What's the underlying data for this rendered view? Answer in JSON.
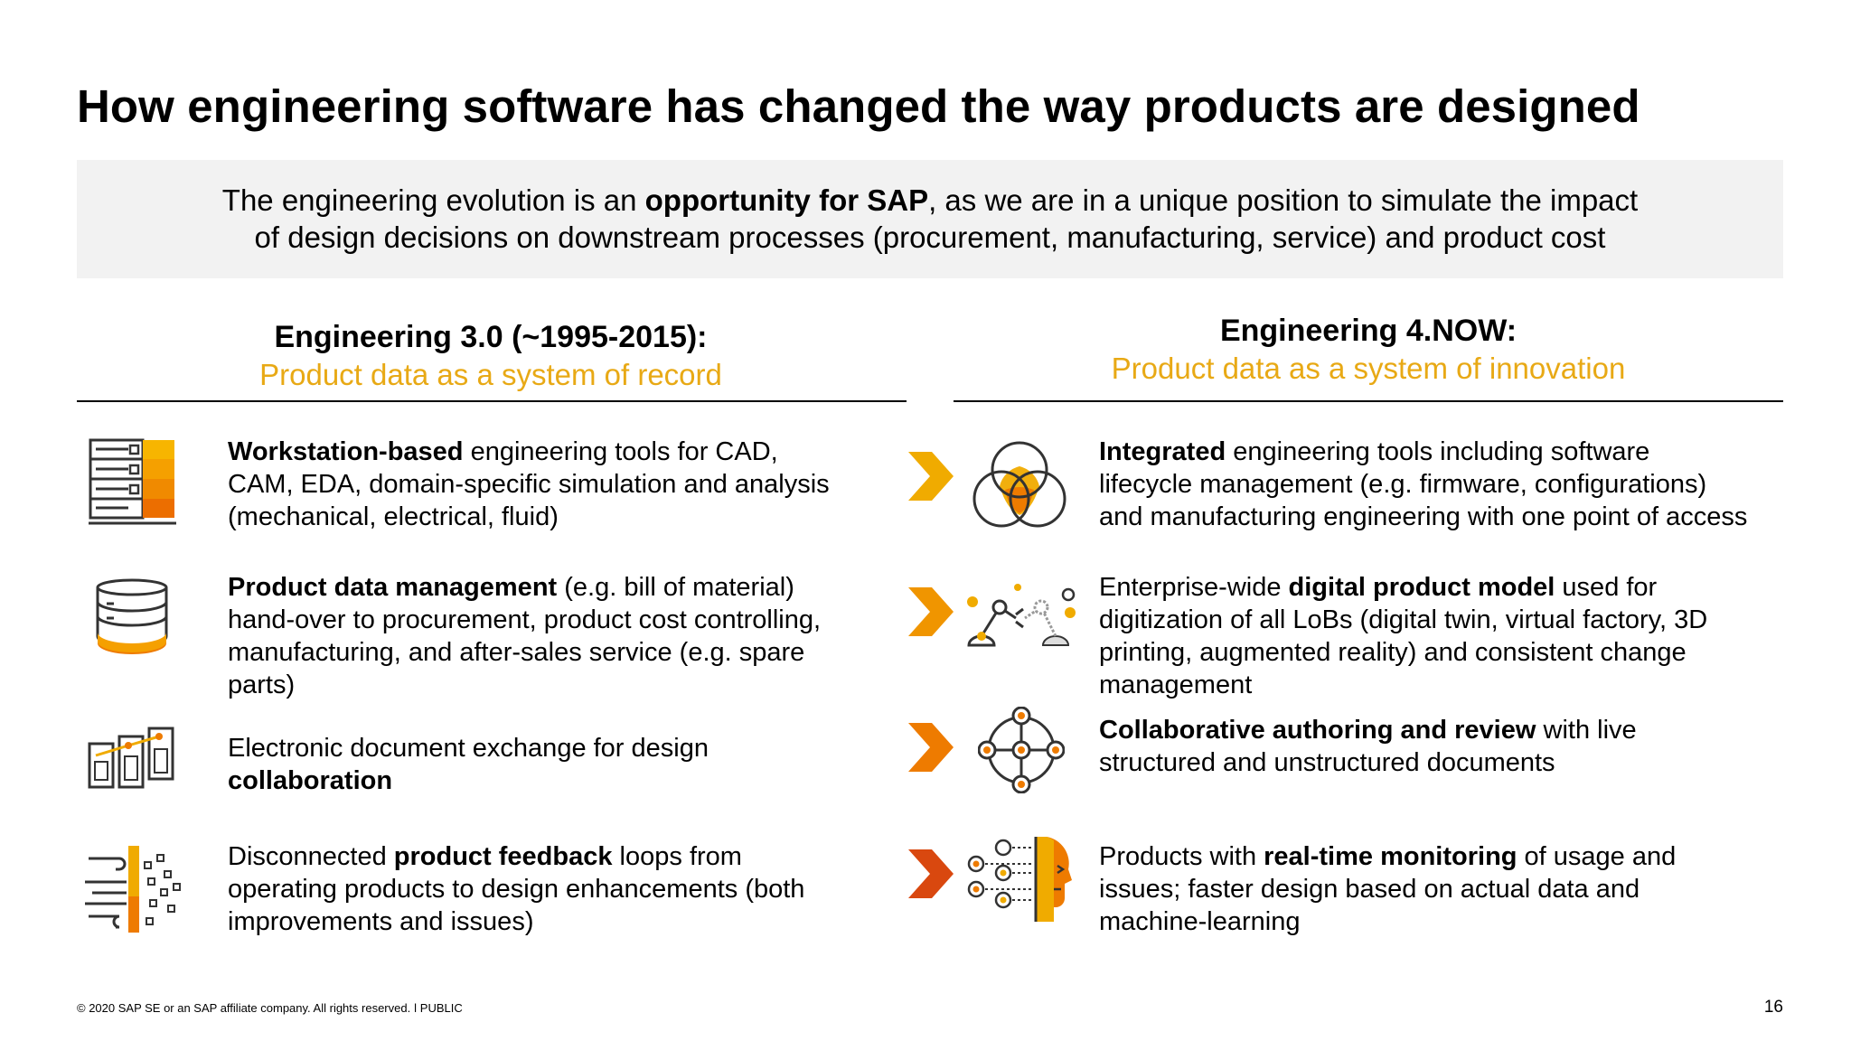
{
  "title": "How engineering software has changed the way products are designed",
  "banner": {
    "line1_pre": "The engineering evolution is an ",
    "line1_bold": "opportunity for SAP",
    "line1_post": ", as we are in a unique position to simulate the impact",
    "line2": "of design decisions on downstream processes (procurement, manufacturing, service) and product cost"
  },
  "left": {
    "heading": "Engineering 3.0 (~1995-2015):",
    "subheading": "Product data as a system of record",
    "items": [
      {
        "icon": "server-rack-icon",
        "bold": "Workstation-based",
        "line1_rest": " engineering tools for CAD,",
        "line2": "CAM, EDA, domain-specific simulation and analysis",
        "line3": "(mechanical, electrical, fluid)"
      },
      {
        "icon": "database-icon",
        "bold": "Product data management",
        "line1_rest": " (e.g. bill of material)",
        "line2": "hand-over to procurement, product cost controlling,",
        "line3": "manufacturing, and after-sales service (e.g. spare",
        "line4": "parts)"
      },
      {
        "icon": "documents-exchange-icon",
        "line1": "Electronic document exchange for design",
        "bold": "collaboration"
      },
      {
        "icon": "feedback-loop-icon",
        "pre": "Disconnected ",
        "bold": "product feedback",
        "line1_rest": " loops from",
        "line2": "operating products to design enhancements (both",
        "line3": "improvements and issues)"
      }
    ]
  },
  "right": {
    "heading": "Engineering 4.NOW:",
    "subheading": "Product data as a system of innovation",
    "items": [
      {
        "icon": "venn-diagram-icon",
        "bold": "Integrated",
        "line1_rest": " engineering tools including software",
        "line2": "lifecycle management (e.g. firmware, configurations)",
        "line3": "and manufacturing engineering with one point of access"
      },
      {
        "icon": "robot-arms-icon",
        "pre": "Enterprise-wide ",
        "bold": "digital product model",
        "line1_rest": " used for",
        "line2": "digitization of all LoBs (digital twin, virtual factory, 3D",
        "line3": "printing, augmented reality) and consistent change",
        "line4": "management"
      },
      {
        "icon": "collaboration-network-icon",
        "bold": "Collaborative authoring and review",
        "line1_rest": " with live",
        "line2": "structured and unstructured documents"
      },
      {
        "icon": "monitoring-ai-icon",
        "pre": "Products with ",
        "bold": "real-time monitoring",
        "line1_rest": " of usage and",
        "line2": "issues; faster design based on actual data and",
        "line3": "machine-learning"
      }
    ]
  },
  "chevron_colors": [
    "#f0ab00",
    "#f09500",
    "#ee7b00",
    "#d9480f"
  ],
  "accent_color": "#e8a915",
  "footer": "© 2020 SAP SE or an SAP affiliate company. All rights reserved.  ǀ  PUBLIC",
  "page_number": "16"
}
